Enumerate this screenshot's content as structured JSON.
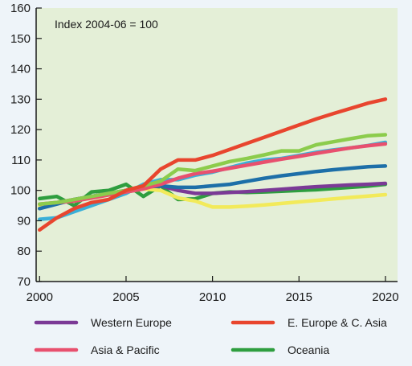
{
  "chart_data": {
    "type": "line",
    "annotation": "Index 2004-06 = 100",
    "x": [
      2000,
      2001,
      2002,
      2003,
      2004,
      2005,
      2006,
      2007,
      2008,
      2009,
      2010,
      2011,
      2012,
      2013,
      2014,
      2015,
      2016,
      2017,
      2018,
      2019,
      2020
    ],
    "xticks": [
      2000,
      2005,
      2010,
      2015,
      2020
    ],
    "yticks": [
      70,
      80,
      90,
      100,
      110,
      120,
      130,
      140,
      150,
      160
    ],
    "ylim": [
      70,
      160
    ],
    "xlim": [
      1999.8,
      2020.7
    ],
    "grid": false,
    "legend_position": "bottom",
    "series": [
      {
        "name": "Oceania",
        "color": "#2e9e3f",
        "values": [
          97.3,
          98,
          95,
          99.5,
          100,
          102,
          98,
          101.5,
          97,
          97.2,
          99,
          99.5,
          99.3,
          99.5,
          99.7,
          100,
          100.2,
          100.6,
          101,
          101.4,
          102
        ]
      },
      {
        "name": "Western Europe",
        "color": "#7b3a96",
        "values": [
          94,
          96,
          97,
          98,
          99,
          99.5,
          100.5,
          101.5,
          100,
          99,
          99,
          99.3,
          99.6,
          100,
          100.4,
          100.8,
          101.2,
          101.5,
          101.8,
          102,
          102.3
        ]
      },
      {
        "name": null,
        "color": "#f2ea5a",
        "values": [
          95,
          96,
          96.5,
          97.5,
          98.5,
          99.5,
          100.5,
          100,
          97.5,
          96.5,
          94.5,
          94.5,
          94.8,
          95.2,
          95.7,
          96.2,
          96.7,
          97.2,
          97.7,
          98.1,
          98.6
        ]
      },
      {
        "name": null,
        "color": "#1d6fa8",
        "values": [
          94,
          95.5,
          97,
          98,
          99,
          100,
          101,
          101.5,
          101,
          101,
          101.5,
          102,
          103,
          104,
          104.8,
          105.5,
          106.2,
          106.8,
          107.3,
          107.8,
          108
        ]
      },
      {
        "name": null,
        "color": "#3ab0d8",
        "values": [
          90.5,
          91,
          93,
          95,
          97,
          99,
          102,
          103.5,
          103.5,
          105,
          106,
          107.5,
          109,
          110,
          110.5,
          111.5,
          112.5,
          113.3,
          114,
          114.8,
          115.8
        ]
      },
      {
        "name": "Asia & Pacific",
        "color": "#e8506e",
        "values": [
          95.5,
          96,
          96.5,
          97.5,
          98.5,
          99.5,
          100.5,
          102,
          104,
          105.5,
          106.3,
          107.3,
          108.3,
          109.3,
          110.3,
          111.2,
          112.2,
          113.1,
          114,
          114.7,
          115.3
        ]
      },
      {
        "name": null,
        "color": "#8ccc4c",
        "values": [
          95.5,
          96,
          97,
          98,
          99,
          100,
          101.5,
          103,
          107,
          106.5,
          108,
          109.5,
          110.5,
          111.7,
          113,
          113,
          115,
          116,
          117,
          118,
          118.3
        ]
      },
      {
        "name": "E. Europe & C. Asia",
        "color": "#e8452e",
        "values": [
          87,
          91,
          94,
          96,
          97,
          100,
          101.5,
          107,
          110,
          110,
          111.5,
          113.5,
          115.5,
          117.5,
          119.5,
          121.5,
          123.5,
          125.3,
          127,
          128.7,
          130
        ]
      }
    ]
  },
  "legend": [
    {
      "label": "Western Europe",
      "color": "#7b3a96"
    },
    {
      "label": "E. Europe & C. Asia",
      "color": "#e8452e"
    },
    {
      "label": "Asia & Pacific",
      "color": "#e8506e"
    },
    {
      "label": "Oceania",
      "color": "#2e9e3f"
    }
  ],
  "colors": {
    "plot_bg": "#e4efd7",
    "page_bg": "#eef4f9",
    "axis": "#1a1a1a"
  }
}
